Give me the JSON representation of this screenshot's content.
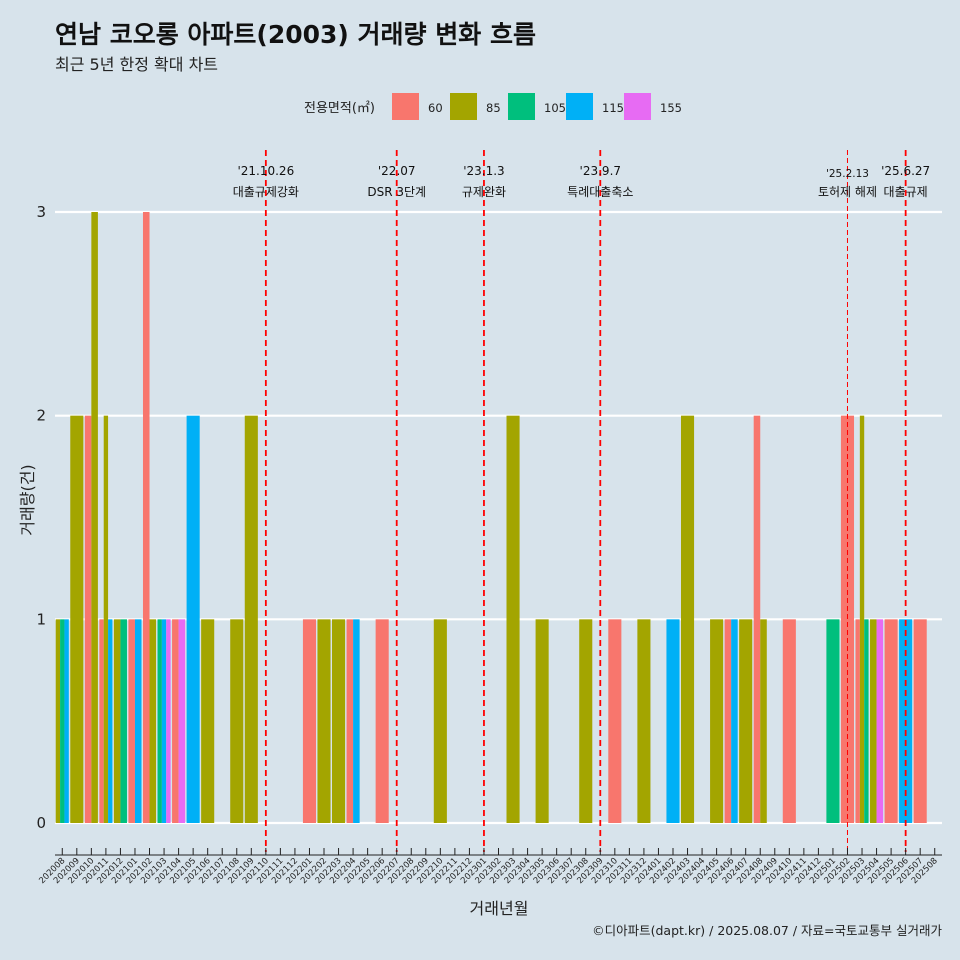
{
  "chart_data": {
    "type": "bar",
    "title": "연남 코오롱 아파트(2003) 거래량 변화 흐름",
    "subtitle": "최근 5년 한정 확대 차트",
    "xlabel": "거래년월",
    "ylabel": "거래량(건)",
    "ylim": [
      0,
      3
    ],
    "yticks": [
      0,
      1,
      2,
      3
    ],
    "grid": "horizontal",
    "legend": {
      "title": "전용면적(㎡)",
      "placement": "top",
      "entries": [
        {
          "name": "60",
          "color": "#F8766D"
        },
        {
          "name": "85",
          "color": "#A3A500"
        },
        {
          "name": "105",
          "color": "#00BF7D"
        },
        {
          "name": "115",
          "color": "#00B0F6"
        },
        {
          "name": "155",
          "color": "#E76BF3"
        }
      ]
    },
    "categories": [
      "202008",
      "202009",
      "202010",
      "202011",
      "202012",
      "202101",
      "202102",
      "202103",
      "202104",
      "202105",
      "202106",
      "202107",
      "202108",
      "202109",
      "202110",
      "202111",
      "202112",
      "202201",
      "202202",
      "202203",
      "202204",
      "202205",
      "202206",
      "202207",
      "202208",
      "202209",
      "202210",
      "202211",
      "202212",
      "202301",
      "202302",
      "202303",
      "202304",
      "202305",
      "202306",
      "202307",
      "202308",
      "202309",
      "202310",
      "202311",
      "202312",
      "202401",
      "202402",
      "202403",
      "202404",
      "202405",
      "202406",
      "202407",
      "202408",
      "202409",
      "202410",
      "202411",
      "202412",
      "202501",
      "202502",
      "202503",
      "202504",
      "202505",
      "202506",
      "202507",
      "202508"
    ],
    "bars": [
      {
        "month": "202008",
        "segments": [
          {
            "area": "85",
            "value": 1
          },
          {
            "area": "105",
            "value": 1
          },
          {
            "area": "115",
            "value": 1
          }
        ]
      },
      {
        "month": "202009",
        "segments": [
          {
            "area": "85",
            "value": 2
          }
        ]
      },
      {
        "month": "202010",
        "segments": [
          {
            "area": "60",
            "value": 2
          },
          {
            "area": "85",
            "value": 3
          }
        ]
      },
      {
        "month": "202011",
        "segments": [
          {
            "area": "60",
            "value": 1
          },
          {
            "area": "85",
            "value": 2
          },
          {
            "area": "115",
            "value": 1
          }
        ]
      },
      {
        "month": "202012",
        "segments": [
          {
            "area": "85",
            "value": 1
          },
          {
            "area": "105",
            "value": 1
          }
        ]
      },
      {
        "month": "202101",
        "segments": [
          {
            "area": "60",
            "value": 1
          },
          {
            "area": "115",
            "value": 1
          }
        ]
      },
      {
        "month": "202102",
        "segments": [
          {
            "area": "60",
            "value": 3
          },
          {
            "area": "85",
            "value": 1
          }
        ]
      },
      {
        "month": "202103",
        "segments": [
          {
            "area": "105",
            "value": 1
          },
          {
            "area": "115",
            "value": 1
          },
          {
            "area": "155",
            "value": 1
          }
        ]
      },
      {
        "month": "202104",
        "segments": [
          {
            "area": "60",
            "value": 1
          },
          {
            "area": "155",
            "value": 1
          }
        ]
      },
      {
        "month": "202105",
        "segments": [
          {
            "area": "115",
            "value": 2
          }
        ]
      },
      {
        "month": "202106",
        "segments": [
          {
            "area": "85",
            "value": 1
          }
        ]
      },
      {
        "month": "202108",
        "segments": [
          {
            "area": "85",
            "value": 1
          }
        ]
      },
      {
        "month": "202109",
        "segments": [
          {
            "area": "85",
            "value": 2
          }
        ]
      },
      {
        "month": "202201",
        "segments": [
          {
            "area": "60",
            "value": 1
          }
        ]
      },
      {
        "month": "202202",
        "segments": [
          {
            "area": "85",
            "value": 1
          }
        ]
      },
      {
        "month": "202203",
        "segments": [
          {
            "area": "85",
            "value": 1
          }
        ]
      },
      {
        "month": "202204",
        "segments": [
          {
            "area": "60",
            "value": 1
          },
          {
            "area": "115",
            "value": 1
          }
        ]
      },
      {
        "month": "202206",
        "segments": [
          {
            "area": "60",
            "value": 1
          }
        ]
      },
      {
        "month": "202210",
        "segments": [
          {
            "area": "85",
            "value": 1
          }
        ]
      },
      {
        "month": "202303",
        "segments": [
          {
            "area": "85",
            "value": 2
          }
        ]
      },
      {
        "month": "202305",
        "segments": [
          {
            "area": "85",
            "value": 1
          }
        ]
      },
      {
        "month": "202308",
        "segments": [
          {
            "area": "85",
            "value": 1
          }
        ]
      },
      {
        "month": "202310",
        "segments": [
          {
            "area": "60",
            "value": 1
          }
        ]
      },
      {
        "month": "202312",
        "segments": [
          {
            "area": "85",
            "value": 1
          }
        ]
      },
      {
        "month": "202402",
        "segments": [
          {
            "area": "115",
            "value": 1
          }
        ]
      },
      {
        "month": "202403",
        "segments": [
          {
            "area": "85",
            "value": 2
          }
        ]
      },
      {
        "month": "202405",
        "segments": [
          {
            "area": "85",
            "value": 1
          }
        ]
      },
      {
        "month": "202406",
        "segments": [
          {
            "area": "60",
            "value": 1
          },
          {
            "area": "115",
            "value": 1
          }
        ]
      },
      {
        "month": "202407",
        "segments": [
          {
            "area": "85",
            "value": 1
          }
        ]
      },
      {
        "month": "202408",
        "segments": [
          {
            "area": "60",
            "value": 2
          },
          {
            "area": "85",
            "value": 1
          }
        ]
      },
      {
        "month": "202410",
        "segments": [
          {
            "area": "60",
            "value": 1
          }
        ]
      },
      {
        "month": "202501",
        "segments": [
          {
            "area": "105",
            "value": 1
          }
        ]
      },
      {
        "month": "202502",
        "segments": [
          {
            "area": "60",
            "value": 2
          }
        ]
      },
      {
        "month": "202503",
        "segments": [
          {
            "area": "60",
            "value": 1
          },
          {
            "area": "85",
            "value": 2
          },
          {
            "area": "105",
            "value": 1
          }
        ]
      },
      {
        "month": "202504",
        "segments": [
          {
            "area": "85",
            "value": 1
          },
          {
            "area": "155",
            "value": 1
          }
        ]
      },
      {
        "month": "202505",
        "segments": [
          {
            "area": "60",
            "value": 1
          }
        ]
      },
      {
        "month": "202506",
        "segments": [
          {
            "area": "115",
            "value": 1
          }
        ]
      },
      {
        "month": "202507",
        "segments": [
          {
            "area": "60",
            "value": 1
          }
        ]
      }
    ],
    "events": [
      {
        "month": "202110",
        "date": "'21.10.26",
        "label": "대출규제강화",
        "style": "dashed"
      },
      {
        "month": "202207",
        "date": "'22.07",
        "label": "DSR 3단계",
        "style": "dashed"
      },
      {
        "month": "202301",
        "date": "'23.1.3",
        "label": "규제완화",
        "style": "dashed"
      },
      {
        "month": "202309",
        "date": "'23.9.7",
        "label": "특례대출축소",
        "style": "dashed"
      },
      {
        "month": "202502",
        "date": "'25.2.13",
        "label": "토허제 해제",
        "style": "thin-dashed"
      },
      {
        "month": "202506",
        "date": "'25.6.27",
        "label": "대출규제",
        "style": "dashed"
      }
    ]
  },
  "caption": "©디아파트(dapt.kr) / 2025.08.07 / 자료=국토교통부 실거래가",
  "colors": {
    "background": "#d7e3eb",
    "grid": "#ffffff",
    "event_line": "#ff0000"
  }
}
